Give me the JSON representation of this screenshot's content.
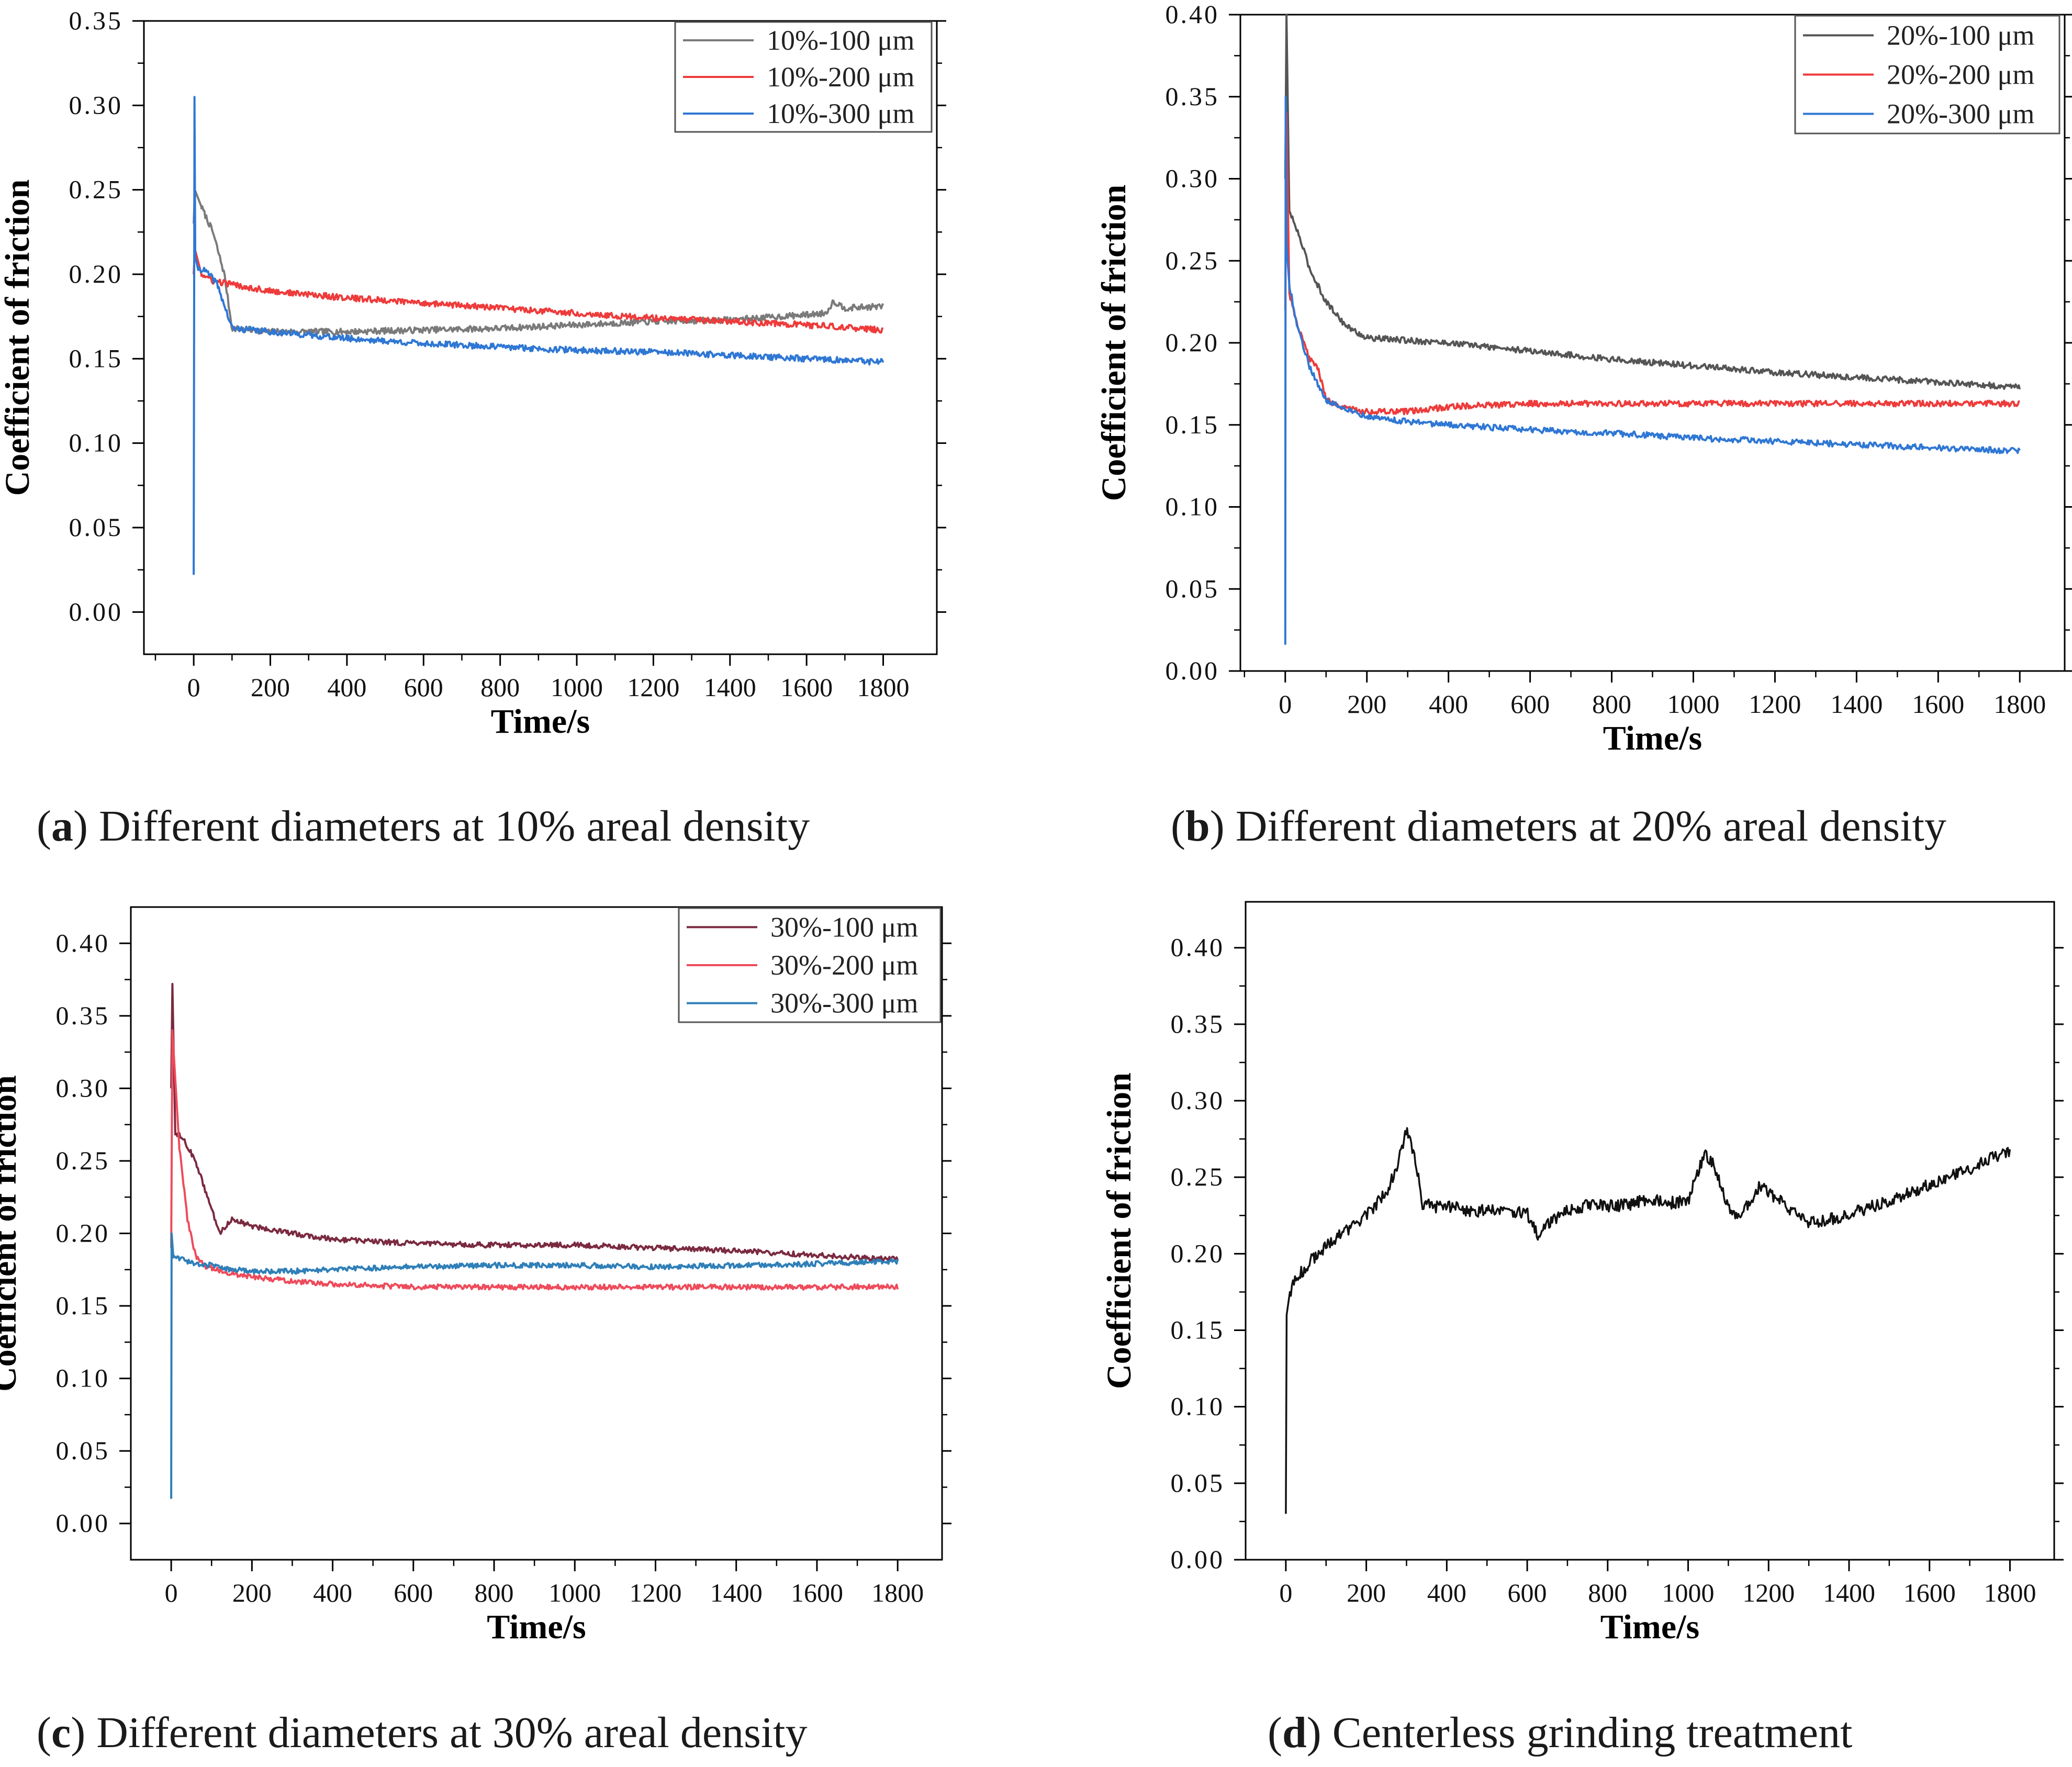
{
  "chart_data": [
    {
      "panel": "a",
      "type": "line",
      "xlabel": "Time/s",
      "ylabel": "Coefficient of friction",
      "xlim": [
        -130,
        1940
      ],
      "ylim": [
        -0.025,
        0.35
      ],
      "xticks": [
        0,
        200,
        400,
        600,
        800,
        1000,
        1200,
        1400,
        1600,
        1800
      ],
      "yticks": [
        0.0,
        0.05,
        0.1,
        0.15,
        0.2,
        0.25,
        0.3,
        0.35
      ],
      "legend_position": "top-right",
      "series": [
        {
          "name": "10%-100 μm",
          "color": "#7a7a7a",
          "x": [
            0,
            3,
            20,
            50,
            80,
            100,
            200,
            400,
            600,
            800,
            1000,
            1200,
            1400,
            1600,
            1650,
            1670,
            1700,
            1800
          ],
          "y": [
            0.23,
            0.25,
            0.24,
            0.225,
            0.2,
            0.168,
            0.166,
            0.166,
            0.167,
            0.168,
            0.17,
            0.172,
            0.173,
            0.176,
            0.177,
            0.184,
            0.18,
            0.181
          ]
        },
        {
          "name": "10%-200 μm",
          "color": "#ee3b3b",
          "x": [
            0,
            3,
            20,
            50,
            100,
            200,
            400,
            600,
            800,
            1000,
            1200,
            1400,
            1600,
            1800
          ],
          "y": [
            0.2,
            0.215,
            0.2,
            0.196,
            0.194,
            0.19,
            0.186,
            0.183,
            0.18,
            0.177,
            0.174,
            0.172,
            0.17,
            0.167
          ]
        },
        {
          "name": "10%-300 μm",
          "color": "#2f77d4",
          "x": [
            0,
            2,
            4,
            8,
            30,
            60,
            100,
            200,
            400,
            600,
            800,
            1000,
            1200,
            1400,
            1600,
            1800
          ],
          "y": [
            0.022,
            0.305,
            0.21,
            0.204,
            0.202,
            0.195,
            0.168,
            0.166,
            0.162,
            0.159,
            0.157,
            0.155,
            0.154,
            0.152,
            0.15,
            0.148
          ]
        }
      ]
    },
    {
      "panel": "b",
      "type": "line",
      "xlabel": "Time/s",
      "ylabel": "Coefficient of friction",
      "xlim": [
        -110,
        1910
      ],
      "ylim": [
        0.0,
        0.4
      ],
      "xticks": [
        0,
        200,
        400,
        600,
        800,
        1000,
        1200,
        1400,
        1600,
        1800
      ],
      "yticks": [
        0.0,
        0.05,
        0.1,
        0.15,
        0.2,
        0.25,
        0.3,
        0.35,
        0.4
      ],
      "legend_position": "top-right",
      "series": [
        {
          "name": "20%-100 μm",
          "color": "#555555",
          "x": [
            0,
            3,
            10,
            30,
            60,
            100,
            150,
            200,
            400,
            600,
            800,
            1000,
            1200,
            1400,
            1600,
            1800
          ],
          "y": [
            0.3,
            0.4,
            0.28,
            0.268,
            0.245,
            0.225,
            0.21,
            0.203,
            0.2,
            0.195,
            0.19,
            0.186,
            0.182,
            0.179,
            0.176,
            0.173
          ]
        },
        {
          "name": "20%-200 μm",
          "color": "#ee3b3b",
          "x": [
            0,
            3,
            10,
            30,
            60,
            80,
            100,
            150,
            200,
            300,
            400,
            600,
            800,
            1000,
            1200,
            1400,
            1600,
            1800
          ],
          "y": [
            0.22,
            0.34,
            0.23,
            0.21,
            0.19,
            0.185,
            0.165,
            0.16,
            0.158,
            0.158,
            0.161,
            0.163,
            0.163,
            0.163,
            0.163,
            0.163,
            0.163,
            0.163
          ]
        },
        {
          "name": "20%-300 μm",
          "color": "#2f77d4",
          "x": [
            0,
            1,
            3,
            10,
            30,
            60,
            100,
            150,
            200,
            300,
            400,
            600,
            800,
            1000,
            1200,
            1400,
            1600,
            1800
          ],
          "y": [
            0.016,
            0.35,
            0.26,
            0.235,
            0.21,
            0.185,
            0.165,
            0.16,
            0.155,
            0.152,
            0.15,
            0.147,
            0.145,
            0.142,
            0.14,
            0.138,
            0.136,
            0.134
          ]
        }
      ]
    },
    {
      "panel": "c",
      "type": "line",
      "xlabel": "Time/s",
      "ylabel": "Coefficient of friction",
      "xlim": [
        -100,
        1910
      ],
      "ylim": [
        -0.025,
        0.425
      ],
      "xticks": [
        0,
        200,
        400,
        600,
        800,
        1000,
        1200,
        1400,
        1600,
        1800
      ],
      "yticks": [
        0.0,
        0.05,
        0.1,
        0.15,
        0.2,
        0.25,
        0.3,
        0.35,
        0.4
      ],
      "legend_position": "top-right",
      "series": [
        {
          "name": "30%-100 μm",
          "color": "#7a2a40",
          "x": [
            0,
            3,
            10,
            30,
            60,
            90,
            120,
            150,
            200,
            300,
            400,
            600,
            800,
            1000,
            1200,
            1400,
            1600,
            1800
          ],
          "y": [
            0.3,
            0.372,
            0.27,
            0.265,
            0.25,
            0.225,
            0.2,
            0.21,
            0.205,
            0.2,
            0.196,
            0.193,
            0.192,
            0.192,
            0.19,
            0.188,
            0.185,
            0.182
          ]
        },
        {
          "name": "30%-200 μm",
          "color": "#ee4b5b",
          "x": [
            0,
            3,
            20,
            40,
            60,
            80,
            100,
            150,
            200,
            300,
            400,
            600,
            800,
            1000,
            1200,
            1400,
            1600,
            1800
          ],
          "y": [
            0.19,
            0.34,
            0.26,
            0.21,
            0.185,
            0.178,
            0.176,
            0.172,
            0.17,
            0.167,
            0.165,
            0.163,
            0.163,
            0.163,
            0.163,
            0.163,
            0.163,
            0.163
          ]
        },
        {
          "name": "30%-300 μm",
          "color": "#2f7fb8",
          "x": [
            0,
            1,
            5,
            20,
            50,
            100,
            150,
            200,
            300,
            400,
            600,
            800,
            1000,
            1200,
            1400,
            1600,
            1800
          ],
          "y": [
            0.017,
            0.2,
            0.185,
            0.183,
            0.18,
            0.178,
            0.175,
            0.174,
            0.174,
            0.175,
            0.177,
            0.178,
            0.178,
            0.177,
            0.178,
            0.179,
            0.181
          ]
        }
      ]
    },
    {
      "panel": "d",
      "type": "line",
      "xlabel": "Time/s",
      "ylabel": "Coefficient of friction",
      "xlim": [
        -100,
        1910
      ],
      "ylim": [
        0.0,
        0.43
      ],
      "xticks": [
        0,
        200,
        400,
        600,
        800,
        1000,
        1200,
        1400,
        1600,
        1800
      ],
      "yticks": [
        0.0,
        0.05,
        0.1,
        0.15,
        0.2,
        0.25,
        0.3,
        0.35,
        0.4
      ],
      "legend_position": "none",
      "series": [
        {
          "color": "#111111",
          "x": [
            0,
            2,
            10,
            30,
            60,
            100,
            150,
            200,
            250,
            280,
            300,
            320,
            340,
            400,
            430,
            450,
            470,
            500,
            550,
            600,
            630,
            650,
            700,
            750,
            800,
            850,
            900,
            950,
            1000,
            1020,
            1040,
            1060,
            1080,
            1100,
            1120,
            1150,
            1180,
            1200,
            1250,
            1300,
            1350,
            1400,
            1450,
            1500,
            1550,
            1600,
            1650,
            1700,
            1750,
            1800
          ],
          "y": [
            0.03,
            0.16,
            0.175,
            0.185,
            0.195,
            0.205,
            0.215,
            0.225,
            0.24,
            0.26,
            0.28,
            0.265,
            0.232,
            0.23,
            0.233,
            0.228,
            0.226,
            0.23,
            0.228,
            0.226,
            0.21,
            0.22,
            0.228,
            0.232,
            0.231,
            0.232,
            0.236,
            0.233,
            0.235,
            0.25,
            0.265,
            0.26,
            0.245,
            0.23,
            0.225,
            0.232,
            0.245,
            0.24,
            0.23,
            0.22,
            0.222,
            0.226,
            0.23,
            0.235,
            0.24,
            0.245,
            0.25,
            0.255,
            0.262,
            0.268
          ]
        }
      ]
    }
  ],
  "captions": [
    {
      "letter": "a",
      "text": " Different diameters at 10% areal density"
    },
    {
      "letter": "b",
      "text": " Different diameters at 20% areal density"
    },
    {
      "letter": "c",
      "text": " Different diameters at 30% areal density"
    },
    {
      "letter": "d",
      "text": " Centerless grinding treatment"
    }
  ]
}
